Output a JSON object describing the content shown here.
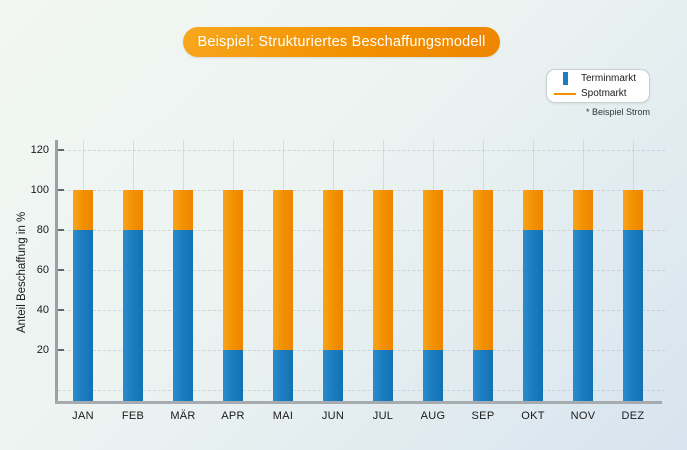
{
  "title": "Beispiel: Strukturiertes Beschaffungsmodell",
  "legend": {
    "items": [
      {
        "label": "Terminmarkt",
        "color": "#1b7ec2",
        "marker": "vertical-bar"
      },
      {
        "label": "Spotmarkt",
        "color": "#f39200",
        "marker": "horizontal-line"
      }
    ],
    "footnote": "* Beispiel Strom"
  },
  "chart_data": {
    "type": "bar",
    "stacked": true,
    "title": "Beispiel: Strukturiertes Beschaffungsmodell",
    "categories": [
      "JAN",
      "FEB",
      "MÄR",
      "APR",
      "MAI",
      "JUN",
      "JUL",
      "AUG",
      "SEP",
      "OKT",
      "NOV",
      "DEZ"
    ],
    "series": [
      {
        "name": "Terminmarkt",
        "color": "#1b7ec2",
        "values": [
          80,
          80,
          80,
          20,
          20,
          20,
          20,
          20,
          20,
          80,
          80,
          80
        ]
      },
      {
        "name": "Spotmarkt",
        "color": "#f39200",
        "values": [
          20,
          20,
          20,
          80,
          80,
          80,
          80,
          80,
          80,
          20,
          20,
          20
        ]
      }
    ],
    "xlabel": "",
    "ylabel": "Anteil Beschaffung in %",
    "yticks": [
      20,
      40,
      60,
      80,
      100,
      120
    ],
    "ylim": [
      -7,
      125
    ],
    "grid": true,
    "gridlines": "horizontal-and-vertical",
    "legend_position": "top-right",
    "unit": "%",
    "totals_per_month": 100
  },
  "colors": {
    "background_gradient_start": "#f2f7f2",
    "background_gradient_end": "#d7e4ef",
    "title_pill": "#f29100",
    "axis": "#9aa0a6",
    "terminmarkt_blue": "#1b7ec2",
    "spotmarkt_orange": "#f39200"
  }
}
